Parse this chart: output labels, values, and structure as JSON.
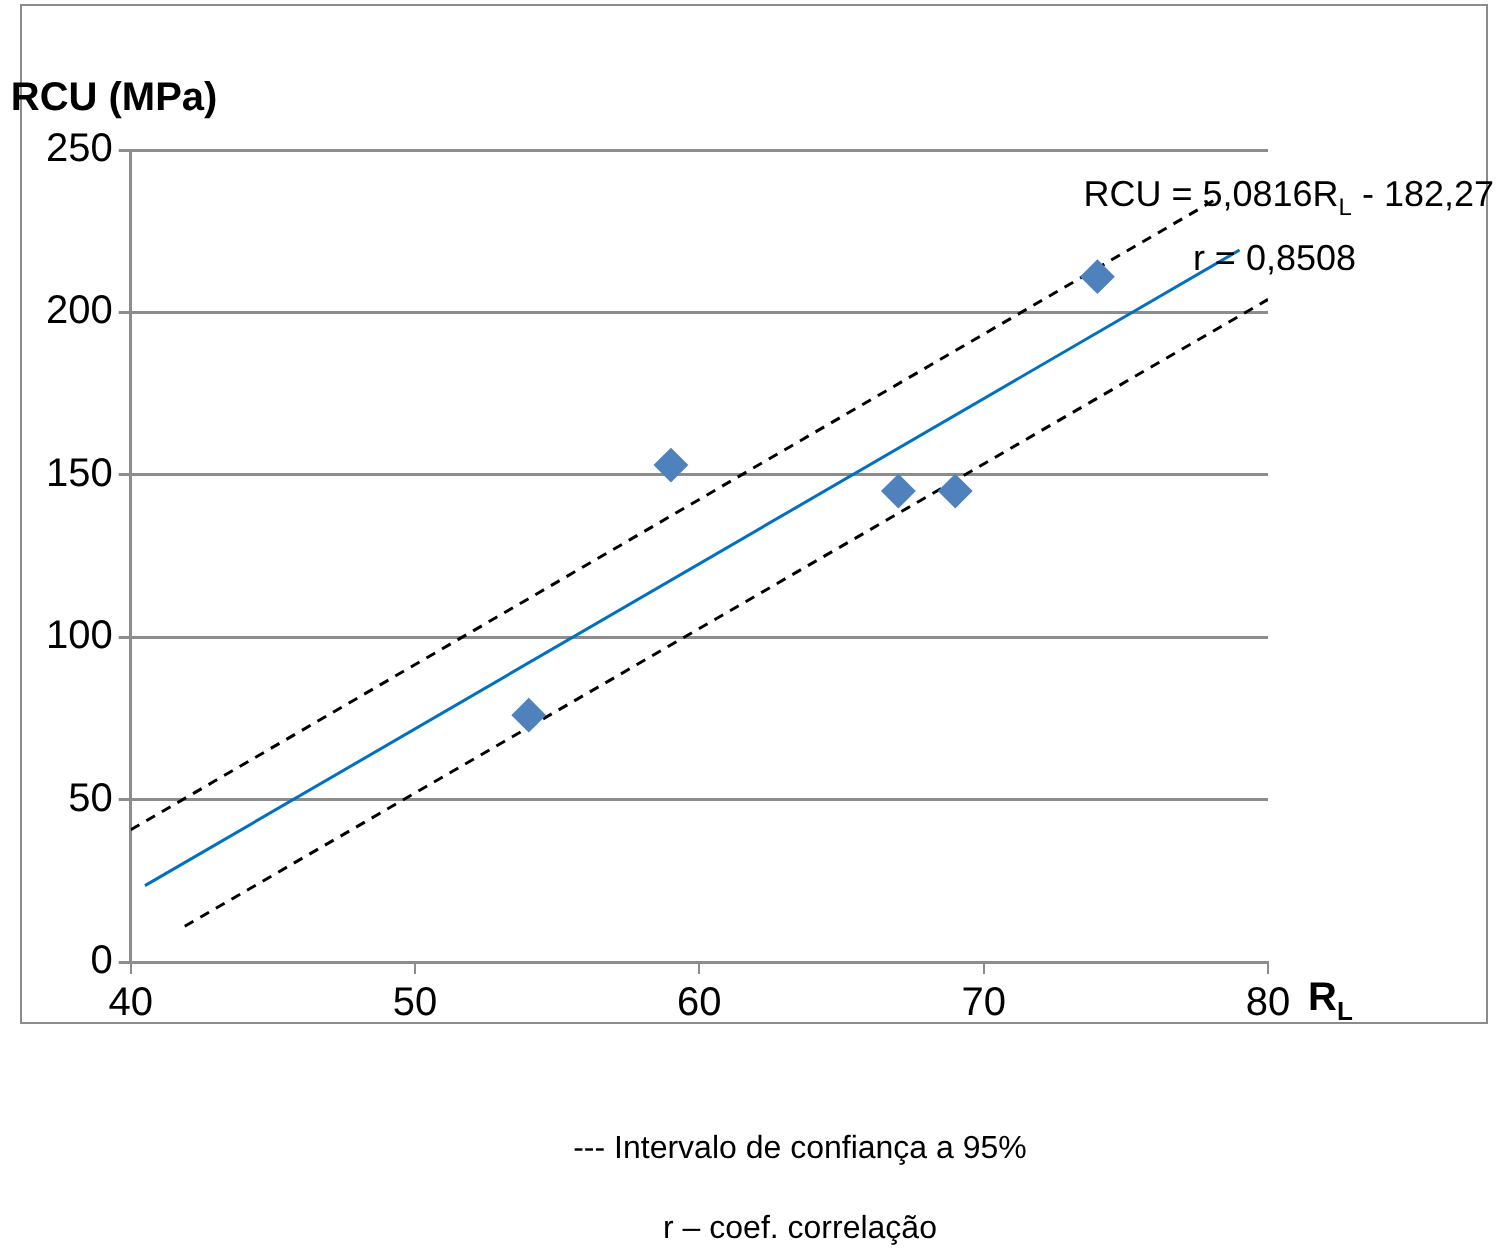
{
  "chart_data": {
    "type": "scatter",
    "xlabel": "R$_{L}$",
    "ylabel": "RCU (MPa)",
    "xlim": [
      40,
      80
    ],
    "xticks": [
      40,
      50,
      60,
      70,
      80
    ],
    "ylim": [
      0,
      250
    ],
    "yticks": [
      0,
      50,
      100,
      150,
      200,
      250
    ],
    "grid": "y",
    "series": [
      {
        "marker": "diamond",
        "color": "#4f81bd",
        "x": [
          54,
          59,
          67,
          69,
          74
        ],
        "values": [
          76,
          153,
          145,
          145,
          211
        ]
      },
      {
        "type": "line",
        "marker": "none",
        "color": "#0070c0",
        "line_style": "solid",
        "x": [
          40.5,
          79
        ],
        "values": [
          23.5,
          219.2
        ]
      },
      {
        "type": "line",
        "marker": "none",
        "color": "#000000",
        "line_style": "dashed",
        "x": [
          40,
          78.2
        ],
        "values": [
          40.7,
          235
        ]
      },
      {
        "type": "line",
        "marker": "none",
        "color": "#000000",
        "line_style": "dashed",
        "x": [
          41.9,
          80
        ],
        "values": [
          11,
          204
        ]
      }
    ],
    "annotations": [
      "RCU = 5,0816R$_{L}$ - 182,27",
      "r = 0,8508",
      "--- Intervalo de confiança a 95%",
      "r – coef. correlação"
    ]
  }
}
